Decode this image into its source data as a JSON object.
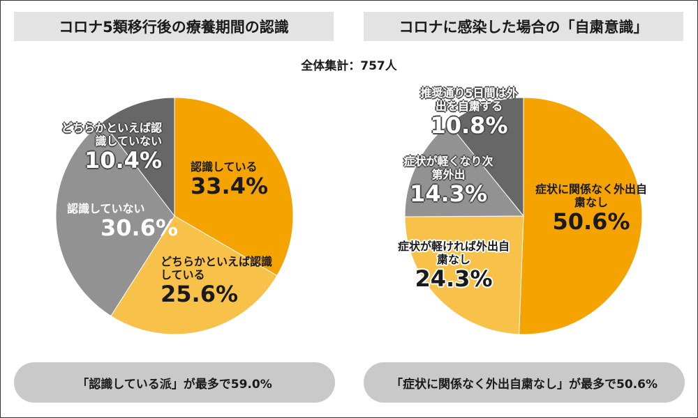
{
  "total_label": "全体集計：757人",
  "chart_data": [
    {
      "type": "pie",
      "title": "コロナ5類移行後の療養期間の認識",
      "summary": "「認識している派」が最多で59.0%",
      "slices": [
        {
          "label": "認識している",
          "value": 33.4,
          "display": "33.4%",
          "color": "#f5a300"
        },
        {
          "label": "どちらかといえば認識している",
          "value": 25.6,
          "display": "25.6%",
          "color": "#f8c14a"
        },
        {
          "label": "認識していない",
          "value": 30.6,
          "display": "30.6%",
          "color": "#929292"
        },
        {
          "label": "どちらかといえば認識していない",
          "value": 10.4,
          "display": "10.4%",
          "color": "#676767"
        }
      ]
    },
    {
      "type": "pie",
      "title": "コロナに感染した場合の「自粛意識」",
      "summary": "「症状に関係なく外出自粛なし」が最多で50.6%",
      "slices": [
        {
          "label": "症状に関係なく外出自粛なし",
          "value": 50.6,
          "display": "50.6%",
          "color": "#f5a300"
        },
        {
          "label": "症状が軽ければ外出自粛なし",
          "value": 24.3,
          "display": "24.3%",
          "color": "#f8c14a"
        },
        {
          "label": "症状が軽くなり次第外出",
          "value": 14.3,
          "display": "14.3%",
          "color": "#929292"
        },
        {
          "label": "推奨通り5日間は外出を自粛する",
          "value": 10.8,
          "display": "10.8%",
          "color": "#676767"
        }
      ]
    }
  ]
}
